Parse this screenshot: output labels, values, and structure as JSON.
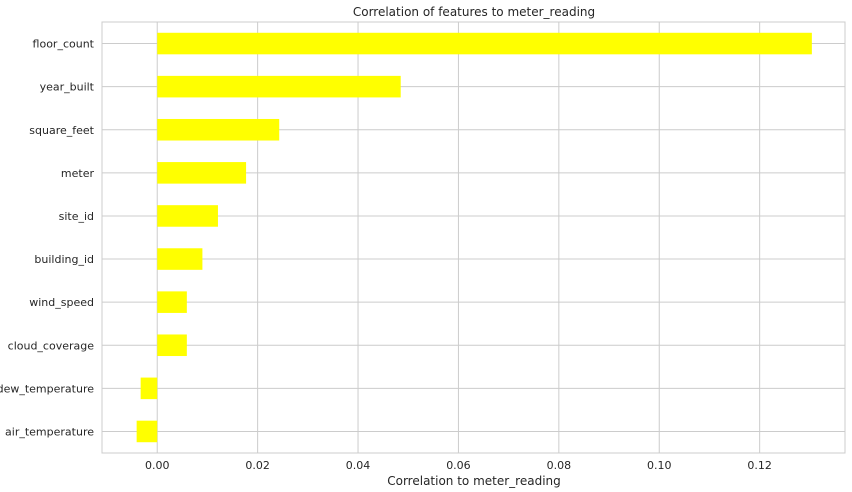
{
  "chart_data": {
    "type": "bar",
    "orientation": "horizontal",
    "title": "Correlation of features to meter_reading",
    "xlabel": "Correlation to meter_reading",
    "ylabel": "",
    "xlim": [
      -0.011,
      0.137
    ],
    "x_ticks": [
      "0.00",
      "0.02",
      "0.04",
      "0.06",
      "0.08",
      "0.10",
      "0.12"
    ],
    "x_tick_values": [
      0.0,
      0.02,
      0.04,
      0.06,
      0.08,
      0.1,
      0.12
    ],
    "grid": true,
    "bar_color": "#ffff00",
    "categories": [
      "floor_count",
      "year_built",
      "square_feet",
      "meter",
      "site_id",
      "building_id",
      "wind_speed",
      "cloud_coverage",
      "dew_temperature",
      "air_temperature"
    ],
    "values": [
      0.1304,
      0.0485,
      0.0243,
      0.0177,
      0.0121,
      0.009,
      0.0059,
      0.0059,
      -0.0033,
      -0.0041
    ]
  }
}
